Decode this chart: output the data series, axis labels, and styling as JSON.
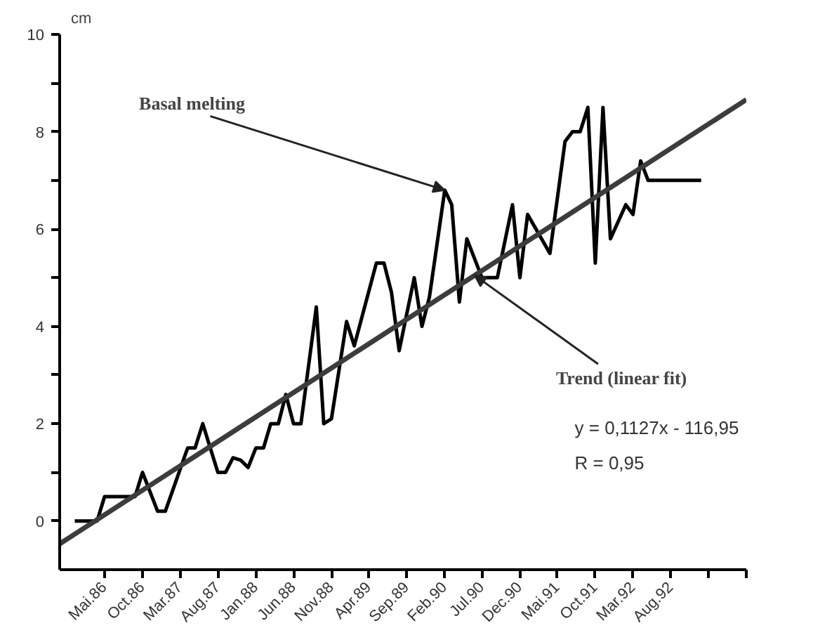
{
  "chart_data": {
    "type": "line",
    "ylabel": "cm",
    "xlim": [
      "1985-11",
      "1993-06"
    ],
    "ylim": [
      -1,
      10
    ],
    "xticks": [
      {
        "value": "1986-05",
        "label": "Mai.86"
      },
      {
        "value": "1986-10",
        "label": "Oct.86"
      },
      {
        "value": "1987-03",
        "label": "Mar.87"
      },
      {
        "value": "1987-08",
        "label": "Aug.87"
      },
      {
        "value": "1988-01",
        "label": "Jan.88"
      },
      {
        "value": "1988-06",
        "label": "Jun.88"
      },
      {
        "value": "1988-11",
        "label": "Nov.88"
      },
      {
        "value": "1989-04",
        "label": "Apr.89"
      },
      {
        "value": "1989-09",
        "label": "Sep.89"
      },
      {
        "value": "1990-02",
        "label": "Feb.90"
      },
      {
        "value": "1990-07",
        "label": "Jul.90"
      },
      {
        "value": "1990-12",
        "label": "Dec.90"
      },
      {
        "value": "1991-05",
        "label": "Mai.91"
      },
      {
        "value": "1991-10",
        "label": "Oct.91"
      },
      {
        "value": "1992-03",
        "label": "Mar.92"
      },
      {
        "value": "1992-08",
        "label": "Aug.92"
      },
      {
        "value": "1993-01",
        "label": null
      },
      {
        "value": "1993-06",
        "label": null
      }
    ],
    "yticks": [
      0,
      {
        "value": 1,
        "label": null
      },
      2,
      {
        "value": 3,
        "label": null
      },
      4,
      {
        "value": 5,
        "label": null
      },
      6,
      {
        "value": 7,
        "label": null
      },
      8,
      {
        "value": 9,
        "label": null
      },
      10
    ],
    "grid": false,
    "marker": "none",
    "line_style": "solid",
    "series": [
      {
        "color": "#000000",
        "x": [
          "1986-01",
          "1986-04",
          "1986-05",
          "1986-09",
          "1986-10",
          "1986-12",
          "1987-01",
          "1987-04",
          "1987-05",
          "1987-06",
          "1987-08",
          "1987-09",
          "1987-10",
          "1987-11",
          "1987-12",
          "1988-01",
          "1988-02",
          "1988-03",
          "1988-04",
          "1988-05",
          "1988-06",
          "1988-07",
          "1988-09",
          "1988-10",
          "1988-11",
          "1989-01",
          "1989-02",
          "1989-05",
          "1989-06",
          "1989-07",
          "1989-08",
          "1989-10",
          "1989-11",
          "1989-12",
          "1990-02",
          "1990-03",
          "1990-04",
          "1990-05",
          "1990-07",
          "1990-09",
          "1990-11",
          "1990-12",
          "1991-01",
          "1991-04",
          "1991-06",
          "1991-07",
          "1991-08",
          "1991-09",
          "1991-10",
          "1991-11",
          "1991-12",
          "1992-02",
          "1992-03",
          "1992-04",
          "1992-05",
          "1992-12"
        ],
        "values": [
          0,
          0,
          0.5,
          0.5,
          1.0,
          0.2,
          0.2,
          1.5,
          1.5,
          2.0,
          1.0,
          1.0,
          1.3,
          1.25,
          1.1,
          1.5,
          1.5,
          2.0,
          2.0,
          2.6,
          2.0,
          2.0,
          4.4,
          2.0,
          2.1,
          4.1,
          3.6,
          5.3,
          5.3,
          4.7,
          3.5,
          5.0,
          4.0,
          4.6,
          6.8,
          6.5,
          4.5,
          5.8,
          5.0,
          5.0,
          6.5,
          5.0,
          6.3,
          5.5,
          7.8,
          8.0,
          8.0,
          8.5,
          5.3,
          8.5,
          5.8,
          6.5,
          6.3,
          7.4,
          7.0,
          7.0
        ]
      },
      {
        "color": "#3c3c3c",
        "x": [
          "1985-11",
          "1993-06"
        ],
        "values": [
          -0.47,
          8.66
        ]
      }
    ],
    "annotations": [
      {
        "text": "Basal melting",
        "x": "1990-02",
        "y": 6.8
      },
      {
        "text": "Trend (linear fit)",
        "x": "1990-06",
        "y": 5.05
      },
      "y = 0,1127x - 116,95",
      "R = 0,95"
    ]
  }
}
